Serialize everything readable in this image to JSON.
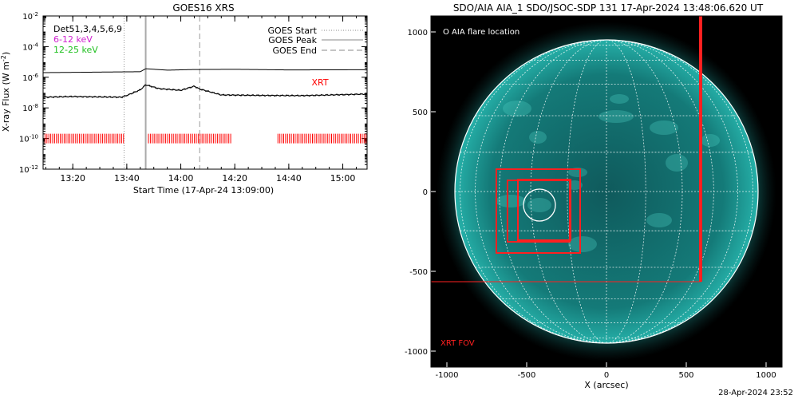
{
  "chart_data": [
    {
      "type": "line",
      "title": "GOES16 XRS",
      "xlabel": "Start Time (17-Apr-24 13:09:00)",
      "ylabel": "X-ray Flux (W m",
      "ylabel_sup": "-2",
      "ylabel_close": ")",
      "yscale": "log",
      "ylim": [
        1e-12,
        0.01
      ],
      "ytick_exponents": [
        -2,
        -4,
        -6,
        -8,
        -10,
        -12
      ],
      "ytick_base": "10",
      "xlim": [
        "13:09",
        "15:09"
      ],
      "xtick_labels": [
        "13:20",
        "13:40",
        "14:00",
        "14:20",
        "14:40",
        "15:00"
      ],
      "legend_top_left": [
        {
          "text": "Det51,3,4,5,6,9",
          "color": "#000000"
        },
        {
          "text": "6-12 keV",
          "color": "#d020d0"
        },
        {
          "text": "12-25 keV",
          "color": "#20c020"
        }
      ],
      "legend_top_right": [
        {
          "text": "GOES Start",
          "style": "dotted"
        },
        {
          "text": "GOES Peak",
          "style": "solid"
        },
        {
          "text": "GOES End",
          "style": "dashed"
        }
      ],
      "xrt_label": "XRT",
      "event_markers": {
        "goes_start": "13:39",
        "goes_peak": "13:47",
        "goes_end": "14:07"
      },
      "series": [
        {
          "x": [
            "13:09",
            "13:45",
            "13:47",
            "13:55",
            "14:05",
            "14:20",
            "14:40",
            "15:09"
          ],
          "values": [
            2e-06,
            2.3e-06,
            3.6e-06,
            2.9e-06,
            3.2e-06,
            3.3e-06,
            3e-06,
            3.1e-06
          ]
        },
        {
          "x": [
            "13:09",
            "13:20",
            "13:38",
            "13:40",
            "13:45",
            "13:47",
            "13:52",
            "14:00",
            "14:05",
            "14:07",
            "14:15",
            "14:30",
            "14:45",
            "15:09"
          ],
          "values": [
            5e-08,
            5.5e-08,
            5e-08,
            6.5e-08,
            1.5e-07,
            3.2e-07,
            1.8e-07,
            1.4e-07,
            2.6e-07,
            1.7e-07,
            7e-08,
            6.5e-08,
            6.3e-08,
            8e-08
          ]
        }
      ],
      "xrt_coverage": [
        [
          "13:09",
          "13:39"
        ],
        [
          "13:48",
          "14:19"
        ],
        [
          "14:36",
          "15:09"
        ]
      ],
      "xrt_level": 1e-10,
      "colors": {
        "axes": "#000000",
        "marker": "#aaaaaa",
        "xrt": "#ff0000"
      }
    },
    {
      "type": "image",
      "title": "SDO/AIA AIA_1 SDO/JSOC-SDP 131 17-Apr-2024 13:48:06.620 UT",
      "xlabel": "X (arcsec)",
      "xlim": [
        -1100,
        1100
      ],
      "ylim": [
        -1100,
        1100
      ],
      "xtick_labels": [
        "-1000",
        "-500",
        "0",
        "500",
        "1000"
      ],
      "ytick_labels": [
        "1000",
        "500",
        "0",
        "-500",
        "-1000"
      ],
      "legend": "O AIA flare location",
      "fov_label": "XRT FOV",
      "solar_radius_arcsec": 950,
      "flare_location_arcsec": [
        -420,
        -85
      ],
      "flare_circle_radius_arcsec": 100,
      "xrt_fov_arcsec": {
        "x": [
          -1100,
          590
        ],
        "y": [
          -565,
          1100
        ]
      },
      "xrt_boxes_arcsec": [
        {
          "x": [
            -690,
            -165
          ],
          "y": [
            -385,
            140
          ]
        },
        {
          "x": [
            -620,
            -230
          ],
          "y": [
            -315,
            70
          ]
        },
        {
          "x": [
            -555,
            -225
          ],
          "y": [
            -305,
            75
          ]
        }
      ],
      "colors": {
        "background": "#000000",
        "disk": "#1fa5a0",
        "grid": "#ffffff",
        "xrt": "#ff2020"
      }
    }
  ],
  "timestamp": "28-Apr-2024 23:52"
}
